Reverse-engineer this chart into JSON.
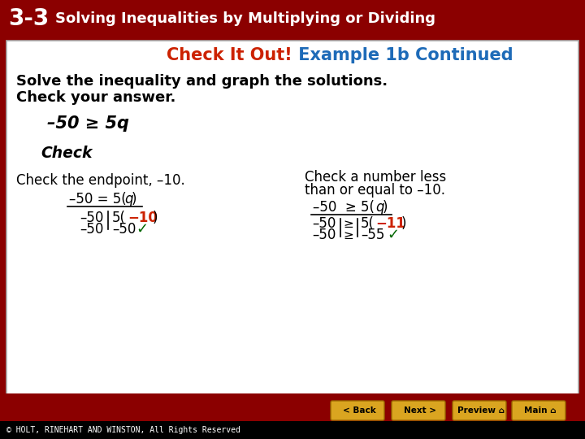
{
  "header_bg": "#8B0000",
  "header_text_33": "3-3",
  "header_title": "Solving Inequalities by Multiplying or Dividing",
  "header_text_color": "#FFFFFF",
  "main_bg": "#FFFFFF",
  "check_it_out_color": "#CC2200",
  "example_color": "#1E6BB8",
  "subtitle": "Check It Out!",
  "subtitle2": " Example 1b Continued",
  "body_line1": "Solve the inequality and graph the solutions.",
  "body_line2": "Check your answer.",
  "left_col_header": "Check the endpoint, –10.",
  "right_col_header1": "Check a number less",
  "right_col_header2": "than or equal to –10.",
  "left_row1_r_color": "#CC2200",
  "right_row1_r_color": "#CC2200",
  "checkmark_color": "#006600",
  "footer_bg": "#000000",
  "footer_text": "© HOLT, RINEHART AND WINSTON, All Rights Reserved",
  "footer_color": "#FFFFFF",
  "nav_bg": "#8B0000",
  "nav_btn_color": "#DAA520"
}
